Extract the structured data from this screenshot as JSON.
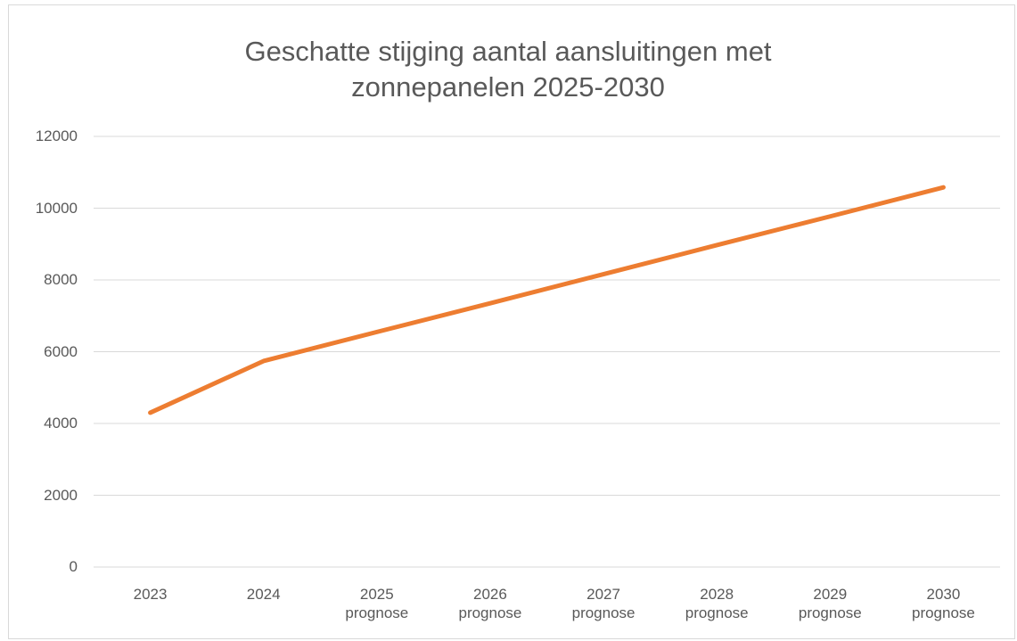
{
  "chart_data": {
    "type": "line",
    "title": "Geschatte stijging aantal aansluitingen met zonnepanelen 2025-2030",
    "categories": [
      "2023",
      "2024",
      "2025 prognose",
      "2026 prognose",
      "2027 prognose",
      "2028 prognose",
      "2029 prognose",
      "2030 prognose"
    ],
    "values": [
      4300,
      5740,
      6550,
      7350,
      8160,
      8970,
      9770,
      10580
    ],
    "color": "#ed7d31",
    "ylim": [
      0,
      12000
    ],
    "yticks": [
      0,
      2000,
      4000,
      6000,
      8000,
      10000,
      12000
    ],
    "grid": true
  }
}
